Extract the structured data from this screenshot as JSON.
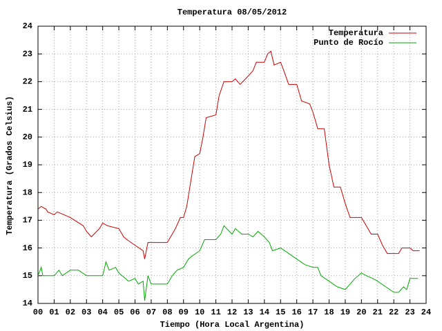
{
  "chart_data": {
    "type": "line",
    "title": "Temperatura 08/05/2012",
    "xlabel": "Tiempo (Hora Local Argentina)",
    "ylabel": "Temperatura (Grados Celsius)",
    "xlim": [
      0,
      24
    ],
    "ylim": [
      14,
      24
    ],
    "xticks": [
      {
        "value": 0,
        "label": "00"
      },
      {
        "value": 1,
        "label": "01"
      },
      {
        "value": 2,
        "label": "02"
      },
      {
        "value": 3,
        "label": "03"
      },
      {
        "value": 4,
        "label": "04"
      },
      {
        "value": 5,
        "label": "05"
      },
      {
        "value": 6,
        "label": "06"
      },
      {
        "value": 7,
        "label": "07"
      },
      {
        "value": 8,
        "label": "08"
      },
      {
        "value": 9,
        "label": "09"
      },
      10,
      11,
      12,
      13,
      14,
      15,
      16,
      17,
      18,
      19,
      20,
      21,
      22,
      23,
      24
    ],
    "yticks": [
      14,
      15,
      16,
      17,
      18,
      19,
      20,
      21,
      22,
      23,
      24
    ],
    "grid": true,
    "legend": "top-right",
    "series": [
      {
        "name": "Temperatura",
        "color": "#cc0000",
        "x": [
          0,
          0.2,
          0.5,
          0.6,
          1,
          1.2,
          2,
          2.8,
          3,
          3.3,
          3.8,
          4,
          4.3,
          5,
          5.3,
          5.5,
          6,
          6.5,
          6.6,
          6.8,
          7,
          7.5,
          8,
          8.5,
          8.8,
          9,
          9.2,
          9.5,
          9.7,
          10,
          10.2,
          10.4,
          11,
          11.2,
          11.5,
          12,
          12.2,
          12.5,
          13,
          13.3,
          13.5,
          14,
          14.2,
          14.4,
          14.6,
          15,
          15.2,
          15.5,
          16,
          16.3,
          16.8,
          17,
          17.3,
          17.7,
          18,
          18.3,
          18.7,
          19,
          19.3,
          20,
          20.2,
          20.6,
          21,
          21.3,
          21.6,
          22,
          22.3,
          22.5,
          23,
          23.2,
          23.6
        ],
        "values": [
          17.4,
          17.5,
          17.4,
          17.3,
          17.2,
          17.3,
          17.1,
          16.8,
          16.6,
          16.4,
          16.7,
          16.9,
          16.8,
          16.7,
          16.4,
          16.3,
          16.1,
          15.9,
          15.6,
          16.2,
          16.2,
          16.2,
          16.2,
          16.7,
          17.1,
          17.1,
          17.5,
          18.6,
          19.3,
          19.4,
          20.0,
          20.7,
          20.8,
          21.5,
          22.0,
          22.0,
          22.1,
          21.9,
          22.2,
          22.4,
          22.7,
          22.7,
          23.0,
          23.1,
          22.6,
          22.7,
          22.4,
          21.9,
          21.9,
          21.3,
          21.2,
          20.9,
          20.3,
          20.3,
          19.0,
          18.2,
          18.2,
          17.6,
          17.1,
          17.1,
          16.9,
          16.5,
          16.5,
          16.1,
          15.8,
          15.8,
          15.8,
          16.0,
          16.0,
          15.9,
          15.9
        ]
      },
      {
        "name": "Punto de Rocío",
        "color": "#00aa00",
        "x": [
          0,
          0.2,
          0.3,
          1,
          1.3,
          1.5,
          2,
          2.5,
          3,
          3.5,
          4,
          4.2,
          4.4,
          4.8,
          5,
          5.4,
          5.6,
          6,
          6.2,
          6.5,
          6.6,
          6.8,
          7,
          7.5,
          8,
          8.3,
          8.6,
          9,
          9.3,
          9.5,
          10,
          10.3,
          11,
          11.3,
          11.5,
          12,
          12.2,
          12.6,
          13,
          13.3,
          13.6,
          14,
          14.3,
          14.5,
          15,
          15.5,
          16,
          16.5,
          17,
          17.3,
          17.5,
          18,
          18.5,
          19,
          19.3,
          19.6,
          20,
          20.3,
          20.7,
          21,
          21.5,
          22,
          22.3,
          22.6,
          22.8,
          23,
          23.5
        ],
        "values": [
          15.0,
          15.3,
          15.0,
          15.0,
          15.2,
          15.0,
          15.2,
          15.2,
          15.0,
          15.0,
          15.0,
          15.5,
          15.2,
          15.3,
          15.1,
          14.9,
          14.8,
          14.9,
          14.7,
          14.8,
          14.1,
          15.0,
          14.7,
          14.7,
          14.7,
          15.0,
          15.2,
          15.3,
          15.6,
          15.7,
          15.9,
          16.3,
          16.3,
          16.5,
          16.8,
          16.5,
          16.7,
          16.5,
          16.5,
          16.4,
          16.6,
          16.4,
          16.2,
          15.9,
          16.0,
          15.8,
          15.6,
          15.4,
          15.3,
          15.3,
          15.0,
          14.8,
          14.6,
          14.5,
          14.7,
          14.9,
          15.1,
          15.0,
          14.9,
          14.8,
          14.6,
          14.4,
          14.4,
          14.6,
          14.5,
          14.9,
          14.9
        ]
      }
    ]
  }
}
